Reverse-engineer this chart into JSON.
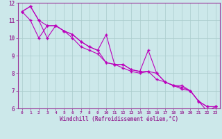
{
  "xlabel": "Windchill (Refroidissement éolien,°C)",
  "background_color": "#cce8ea",
  "line_color": "#bb00bb",
  "grid_color": "#aacccc",
  "x": [
    0,
    1,
    2,
    3,
    4,
    5,
    6,
    7,
    8,
    9,
    10,
    11,
    12,
    13,
    14,
    15,
    16,
    17,
    18,
    19,
    20,
    21,
    22,
    23
  ],
  "line1": [
    11.5,
    11.8,
    11.0,
    10.7,
    10.7,
    10.4,
    10.2,
    9.8,
    9.5,
    9.3,
    8.6,
    8.5,
    8.5,
    8.2,
    8.1,
    9.3,
    8.0,
    7.5,
    7.3,
    7.3,
    7.0,
    6.4,
    6.1,
    6.1
  ],
  "line2": [
    11.5,
    11.8,
    11.0,
    10.0,
    10.7,
    10.4,
    10.2,
    9.8,
    9.5,
    9.3,
    10.2,
    8.5,
    8.5,
    8.2,
    8.1,
    8.1,
    8.0,
    7.5,
    7.3,
    7.2,
    7.0,
    6.4,
    5.85,
    6.1
  ],
  "line3": [
    11.5,
    11.0,
    10.0,
    10.7,
    10.7,
    10.4,
    10.0,
    9.5,
    9.3,
    9.1,
    8.6,
    8.5,
    8.3,
    8.1,
    8.0,
    8.1,
    7.65,
    7.5,
    7.3,
    7.1,
    7.0,
    6.4,
    6.1,
    6.1
  ],
  "ylim": [
    6,
    12
  ],
  "xlim": [
    -0.5,
    23.5
  ],
  "yticks": [
    6,
    7,
    8,
    9,
    10,
    11,
    12
  ],
  "xticks": [
    0,
    1,
    2,
    3,
    4,
    5,
    6,
    7,
    8,
    9,
    10,
    11,
    12,
    13,
    14,
    15,
    16,
    17,
    18,
    19,
    20,
    21,
    22,
    23
  ],
  "tick_color": "#993399",
  "xlabel_fontsize": 5.5,
  "xtick_fontsize": 4.5,
  "ytick_fontsize": 5.5
}
